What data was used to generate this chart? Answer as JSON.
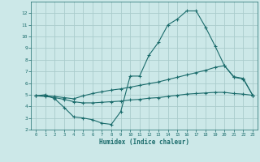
{
  "xlabel": "Humidex (Indice chaleur)",
  "background_color": "#cce8e8",
  "grid_color": "#aacccc",
  "line_color": "#1a6b6b",
  "xlim": [
    -0.5,
    23.5
  ],
  "ylim": [
    2,
    13
  ],
  "xticks": [
    0,
    1,
    2,
    3,
    4,
    5,
    6,
    7,
    8,
    9,
    10,
    11,
    12,
    13,
    14,
    15,
    16,
    17,
    18,
    19,
    20,
    21,
    22,
    23
  ],
  "yticks": [
    2,
    3,
    4,
    5,
    6,
    7,
    8,
    9,
    10,
    11,
    12
  ],
  "line1_x": [
    0,
    1,
    2,
    3,
    4,
    5,
    6,
    7,
    8,
    9,
    10,
    11,
    12,
    13,
    14,
    15,
    16,
    17,
    18,
    19,
    20,
    21,
    22,
    23
  ],
  "line1_y": [
    4.9,
    5.0,
    4.65,
    3.9,
    3.1,
    3.0,
    2.85,
    2.55,
    2.45,
    3.55,
    6.6,
    6.6,
    8.4,
    9.5,
    11.0,
    11.5,
    12.2,
    12.2,
    10.8,
    9.2,
    7.5,
    6.5,
    6.35,
    4.95
  ],
  "line2_x": [
    0,
    1,
    2,
    3,
    4,
    5,
    6,
    7,
    8,
    9,
    10,
    11,
    12,
    13,
    14,
    15,
    16,
    17,
    18,
    19,
    20,
    21,
    22,
    23
  ],
  "line2_y": [
    4.9,
    4.9,
    4.85,
    4.75,
    4.65,
    4.9,
    5.1,
    5.25,
    5.4,
    5.5,
    5.65,
    5.8,
    5.95,
    6.1,
    6.3,
    6.5,
    6.7,
    6.9,
    7.1,
    7.35,
    7.5,
    6.55,
    6.4,
    4.95
  ],
  "line3_x": [
    0,
    1,
    2,
    3,
    4,
    5,
    6,
    7,
    8,
    9,
    10,
    11,
    12,
    13,
    14,
    15,
    16,
    17,
    18,
    19,
    20,
    21,
    22,
    23
  ],
  "line3_y": [
    4.9,
    4.85,
    4.75,
    4.6,
    4.4,
    4.3,
    4.3,
    4.35,
    4.4,
    4.45,
    4.55,
    4.6,
    4.7,
    4.75,
    4.85,
    4.95,
    5.05,
    5.1,
    5.15,
    5.2,
    5.2,
    5.1,
    5.05,
    4.95
  ]
}
